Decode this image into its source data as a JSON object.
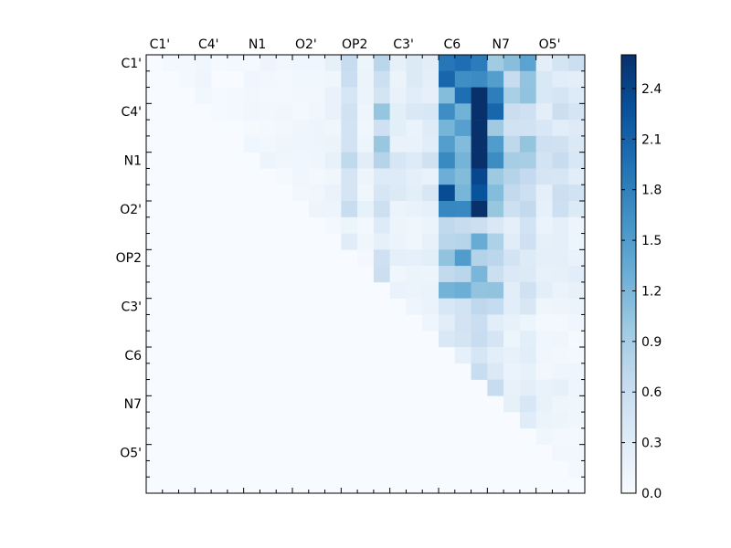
{
  "chart_data": {
    "type": "heatmap",
    "title": "",
    "xlabel": "",
    "ylabel": "",
    "x_tick_labels": [
      "C1'",
      "C4'",
      "N1",
      "O2'",
      "OP2",
      "C3'",
      "C6",
      "N7",
      "O5'"
    ],
    "y_tick_labels": [
      "C1'",
      "C4'",
      "N1",
      "O2'",
      "OP2",
      "C3'",
      "C6",
      "N7",
      "O5'"
    ],
    "x_tick_positions": [
      0.5,
      3.5,
      6.5,
      9.5,
      12.5,
      15.5,
      18.5,
      21.5,
      24.5
    ],
    "y_tick_positions": [
      0.5,
      3.5,
      6.5,
      9.5,
      12.5,
      15.5,
      18.5,
      21.5,
      24.5
    ],
    "grid_size": 27,
    "upper_triangular": true,
    "colormap": "Blues",
    "colormap_stops": [
      "#f7fbff",
      "#deebf7",
      "#c6dbef",
      "#9ecae1",
      "#6baed6",
      "#4292c6",
      "#2171b5",
      "#08519c",
      "#08306b"
    ],
    "value_range": [
      0.0,
      2.6
    ],
    "colorbar_ticks": [
      0.0,
      0.3,
      0.6,
      0.9,
      1.2,
      1.5,
      1.8,
      2.1,
      2.4
    ],
    "colorbar_tick_labels": [
      "0.0",
      "0.3",
      "0.6",
      "0.9",
      "1.2",
      "1.5",
      "1.8",
      "2.1",
      "2.4"
    ],
    "colorbar_position": "right",
    "grid": false,
    "column_strength": [
      0.05,
      0.05,
      0.08,
      0.12,
      0.05,
      0.06,
      0.08,
      0.1,
      0.08,
      0.1,
      0.12,
      0.18,
      0.55,
      0.2,
      0.75,
      0.3,
      0.3,
      0.4,
      1.8,
      2.0,
      2.6,
      1.6,
      0.8,
      1.0,
      0.4,
      0.5,
      0.4
    ],
    "row_strength": [
      1.0,
      0.85,
      0.8,
      0.95,
      0.9,
      1.0,
      1.0,
      0.8,
      0.95,
      0.8,
      0.35,
      0.5,
      0.55,
      0.55,
      0.55,
      0.3,
      0.2,
      0.2,
      0.2,
      0.3,
      0.4,
      0.35,
      0.3,
      0.2,
      0.2,
      0.15,
      0.05
    ]
  }
}
